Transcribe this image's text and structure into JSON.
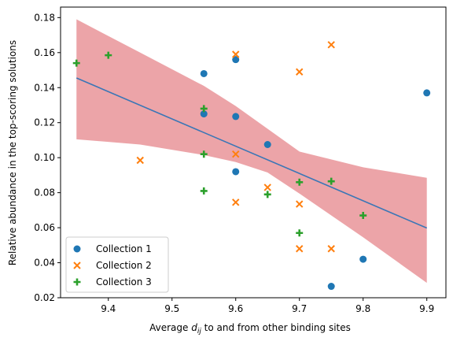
{
  "chart_data": {
    "type": "scatter",
    "title": "",
    "xlabel_parts": {
      "before": "Average ",
      "italic": "d",
      "subscript": "ij",
      "after": " to and from other binding sites"
    },
    "ylabel": "Relative abundance in the top-scoring solutions",
    "xlim": [
      9.325,
      9.93
    ],
    "ylim": [
      0.02,
      0.186
    ],
    "xticks": [
      "9.4",
      "9.5",
      "9.6",
      "9.7",
      "9.8",
      "9.9"
    ],
    "yticks": [
      "0.02",
      "0.04",
      "0.06",
      "0.08",
      "0.10",
      "0.12",
      "0.14",
      "0.16",
      "0.18"
    ],
    "grid": false,
    "legend_position": "lower-left",
    "series": [
      {
        "name": "Collection 1",
        "marker": "circle",
        "color": "#1f77b4",
        "points": [
          [
            9.55,
            0.148
          ],
          [
            9.6,
            0.156
          ],
          [
            9.55,
            0.125
          ],
          [
            9.6,
            0.1235
          ],
          [
            9.65,
            0.1075
          ],
          [
            9.6,
            0.092
          ],
          [
            9.75,
            0.0265
          ],
          [
            9.8,
            0.042
          ],
          [
            9.9,
            0.137
          ]
        ]
      },
      {
        "name": "Collection 2",
        "marker": "x",
        "color": "#ff7f0e",
        "points": [
          [
            9.45,
            0.0985
          ],
          [
            9.6,
            0.159
          ],
          [
            9.6,
            0.102
          ],
          [
            9.6,
            0.0745
          ],
          [
            9.65,
            0.083
          ],
          [
            9.7,
            0.149
          ],
          [
            9.7,
            0.0735
          ],
          [
            9.7,
            0.048
          ],
          [
            9.75,
            0.1645
          ],
          [
            9.75,
            0.048
          ]
        ]
      },
      {
        "name": "Collection 3",
        "marker": "plus",
        "color": "#2ca02c",
        "points": [
          [
            9.35,
            0.154
          ],
          [
            9.4,
            0.1585
          ],
          [
            9.55,
            0.128
          ],
          [
            9.55,
            0.102
          ],
          [
            9.55,
            0.081
          ],
          [
            9.65,
            0.079
          ],
          [
            9.7,
            0.086
          ],
          [
            9.7,
            0.057
          ],
          [
            9.75,
            0.0865
          ],
          [
            9.8,
            0.067
          ]
        ]
      }
    ],
    "regression_line": {
      "color": "#3a76b6",
      "points": [
        [
          9.35,
          0.1455
        ],
        [
          9.9,
          0.0598
        ]
      ]
    },
    "confidence_band": {
      "color": "#e0686e",
      "opacity": 0.6,
      "x": [
        9.35,
        9.45,
        9.55,
        9.6,
        9.65,
        9.7,
        9.8,
        9.9
      ],
      "upper": [
        0.179,
        0.16,
        0.141,
        0.1295,
        0.1165,
        0.1035,
        0.0945,
        0.0885
      ],
      "lower": [
        0.1105,
        0.1075,
        0.1015,
        0.0975,
        0.0915,
        0.0795,
        0.0545,
        0.0285
      ]
    }
  }
}
